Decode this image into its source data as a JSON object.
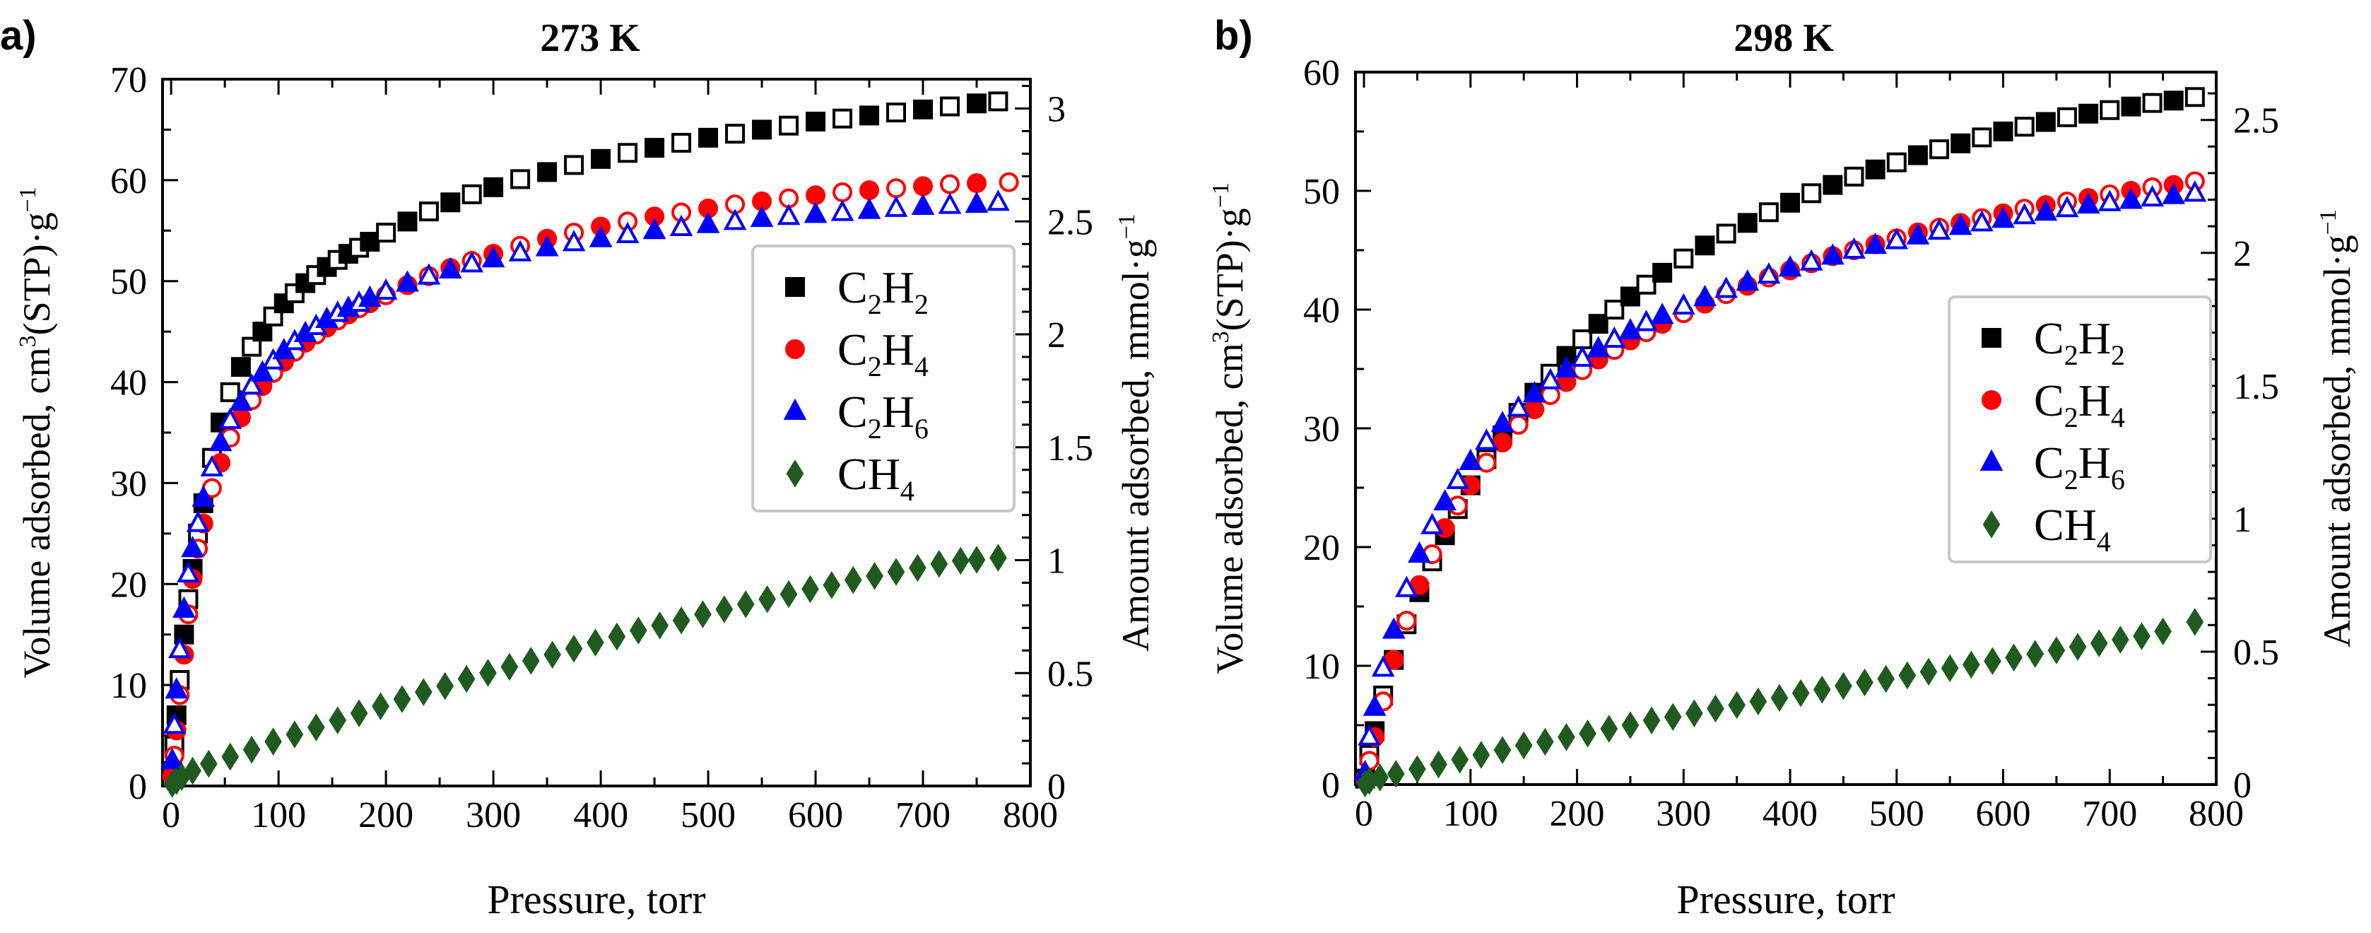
{
  "panels": [
    {
      "label": "a)",
      "title": "273 K",
      "xlabel": "Pressure, torr",
      "ylabel": "Volume adsorbed, cm3(STP)·g−1",
      "ylabel_parts": [
        "Volume adsorbed, cm",
        "3",
        "(STP)·g",
        "−1"
      ],
      "y2label": "Amount adsorbed, mmol·g−1",
      "y2label_parts": [
        "Amount adsorbed, mmol·g",
        "−1"
      ]
    },
    {
      "label": "b)",
      "title": "298 K",
      "xlabel": "Pressure, torr",
      "ylabel": "Volume adsorbed, cm3(STP)·g−1",
      "ylabel_parts": [
        "Volume adsorbed, cm",
        "3",
        "(STP)·g",
        "−1"
      ],
      "y2label": "Amount adsorbed, mmol·g−1",
      "y2label_parts": [
        "Amount adsorbed, mmol·g",
        "−1"
      ]
    }
  ],
  "legend": [
    {
      "key": "C2H2",
      "text": [
        "C",
        "2",
        "H",
        "2"
      ],
      "color": "#000000",
      "marker": "square"
    },
    {
      "key": "C2H4",
      "text": [
        "C",
        "2",
        "H",
        "4"
      ],
      "color": "#ff0000",
      "marker": "circle"
    },
    {
      "key": "C2H6",
      "text": [
        "C",
        "2",
        "H",
        "6"
      ],
      "color": "#0000ff",
      "marker": "triangle"
    },
    {
      "key": "CH4",
      "text": [
        "CH",
        "4"
      ],
      "color": "#1f5a1f",
      "marker": "diamond"
    }
  ],
  "chart_data": [
    {
      "type": "scatter",
      "title": "273 K",
      "xlabel": "Pressure, torr",
      "ylabel": "Volume adsorbed, cm3(STP)·g−1",
      "y2label": "Amount adsorbed, mmol·g−1",
      "xlim": [
        0,
        800
      ],
      "ylim": [
        0,
        70
      ],
      "y2lim": [
        0,
        3.13
      ],
      "xticks": [
        0,
        100,
        200,
        300,
        400,
        500,
        600,
        700,
        800
      ],
      "yticks": [
        0,
        10,
        20,
        30,
        40,
        50,
        60,
        70
      ],
      "y2ticks": [
        0,
        0.5,
        1,
        1.5,
        2,
        2.5,
        3
      ],
      "xtick_labels": [
        "0",
        "100",
        "200",
        "300",
        "400",
        "500",
        "600",
        "700",
        "800"
      ],
      "ytick_labels": [
        "0",
        "10",
        "20",
        "30",
        "40",
        "50",
        "60",
        "70"
      ],
      "y2tick_labels": [
        "0",
        "0.5",
        "1",
        "1.5",
        "2",
        "2.5",
        "3"
      ],
      "grid": false,
      "legend_position": "right-middle",
      "series": [
        {
          "name": "C2H2",
          "marker": "square",
          "color": "#000000",
          "x": [
            1,
            3,
            5,
            8,
            12,
            16,
            20,
            25,
            30,
            38,
            46,
            55,
            65,
            75,
            85,
            95,
            105,
            115,
            125,
            135,
            145,
            155,
            165,
            175,
            185,
            200,
            220,
            240,
            260,
            280,
            300,
            325,
            350,
            375,
            400,
            425,
            450,
            475,
            500,
            525,
            550,
            575,
            600,
            625,
            650,
            675,
            700,
            725,
            750,
            770
          ],
          "y": [
            1.5,
            4,
            7,
            10.5,
            15,
            18.5,
            21.5,
            25,
            28,
            32.5,
            36,
            39,
            41.5,
            43.5,
            45,
            46.5,
            47.8,
            48.8,
            49.8,
            50.6,
            51.4,
            52.1,
            52.7,
            53.3,
            53.9,
            54.8,
            55.9,
            56.9,
            57.8,
            58.6,
            59.3,
            60.1,
            60.8,
            61.5,
            62.1,
            62.7,
            63.2,
            63.7,
            64.2,
            64.6,
            65.0,
            65.4,
            65.8,
            66.1,
            66.4,
            66.7,
            67.0,
            67.3,
            67.6,
            67.8
          ]
        },
        {
          "name": "C2H4",
          "marker": "circle",
          "color": "#ff0000",
          "x": [
            1,
            3,
            5,
            8,
            12,
            16,
            20,
            25,
            30,
            38,
            46,
            55,
            65,
            75,
            85,
            95,
            105,
            115,
            125,
            135,
            145,
            155,
            165,
            175,
            185,
            200,
            220,
            240,
            260,
            280,
            300,
            325,
            350,
            375,
            400,
            425,
            450,
            475,
            500,
            525,
            550,
            575,
            600,
            625,
            650,
            675,
            700,
            725,
            750,
            780
          ],
          "y": [
            1,
            3,
            5.5,
            9,
            13,
            17,
            20.5,
            23.5,
            26,
            29.5,
            32,
            34.5,
            36.5,
            38.2,
            39.6,
            40.9,
            42.0,
            43.0,
            43.9,
            44.7,
            45.4,
            46.1,
            46.7,
            47.3,
            47.8,
            48.6,
            49.6,
            50.5,
            51.3,
            52.0,
            52.7,
            53.5,
            54.2,
            54.8,
            55.4,
            55.9,
            56.4,
            56.8,
            57.2,
            57.6,
            57.9,
            58.2,
            58.5,
            58.8,
            59.0,
            59.2,
            59.4,
            59.6,
            59.7,
            59.8
          ]
        },
        {
          "name": "C2H6",
          "marker": "triangle",
          "color": "#0000ff",
          "x": [
            1,
            3,
            5,
            8,
            12,
            16,
            20,
            25,
            30,
            38,
            46,
            55,
            65,
            75,
            85,
            95,
            105,
            115,
            125,
            135,
            145,
            155,
            165,
            175,
            185,
            200,
            220,
            240,
            260,
            280,
            300,
            325,
            350,
            375,
            400,
            425,
            450,
            475,
            500,
            525,
            550,
            575,
            600,
            625,
            650,
            675,
            700,
            725,
            750,
            770
          ],
          "y": [
            2.5,
            6,
            9.5,
            13.5,
            17.5,
            21,
            23.5,
            26,
            28.5,
            31.5,
            34,
            36.2,
            38,
            39.6,
            40.9,
            42.1,
            43.1,
            44,
            44.8,
            45.5,
            46.2,
            46.8,
            47.3,
            47.8,
            48.3,
            49.0,
            49.8,
            50.5,
            51.1,
            51.7,
            52.2,
            52.8,
            53.3,
            53.8,
            54.2,
            54.6,
            55.0,
            55.3,
            55.6,
            55.9,
            56.2,
            56.4,
            56.6,
            56.8,
            57.0,
            57.2,
            57.4,
            57.5,
            57.6,
            57.8
          ]
        },
        {
          "name": "CH4",
          "marker": "diamond",
          "color": "#1f5a1f",
          "x": [
            1,
            5,
            10,
            20,
            35,
            55,
            75,
            95,
            115,
            135,
            155,
            175,
            195,
            215,
            235,
            255,
            275,
            295,
            315,
            335,
            355,
            375,
            395,
            415,
            435,
            455,
            475,
            495,
            515,
            535,
            555,
            575,
            595,
            615,
            635,
            655,
            675,
            695,
            715,
            735,
            750,
            770
          ],
          "y": [
            0.2,
            0.5,
            0.9,
            1.5,
            2.2,
            2.9,
            3.6,
            4.4,
            5.1,
            5.8,
            6.5,
            7.2,
            7.9,
            8.6,
            9.3,
            9.9,
            10.6,
            11.2,
            11.8,
            12.4,
            13.0,
            13.6,
            14.2,
            14.8,
            15.4,
            15.9,
            16.4,
            17.0,
            17.5,
            18.0,
            18.5,
            19.0,
            19.5,
            19.9,
            20.4,
            20.8,
            21.2,
            21.6,
            22.0,
            22.3,
            22.4,
            22.6
          ]
        }
      ]
    },
    {
      "type": "scatter",
      "title": "298 K",
      "xlabel": "Pressure, torr",
      "ylabel": "Volume adsorbed, cm3(STP)·g−1",
      "y2label": "Amount adsorbed, mmol·g−1",
      "xlim": [
        0,
        800
      ],
      "ylim": [
        0,
        60
      ],
      "y2lim": [
        0,
        2.68
      ],
      "xticks": [
        0,
        100,
        200,
        300,
        400,
        500,
        600,
        700,
        800
      ],
      "yticks": [
        0,
        10,
        20,
        30,
        40,
        50,
        60
      ],
      "y2ticks": [
        0,
        0.5,
        1,
        1.5,
        2,
        2.5
      ],
      "xtick_labels": [
        "0",
        "100",
        "200",
        "300",
        "400",
        "500",
        "600",
        "700",
        "800"
      ],
      "ytick_labels": [
        "0",
        "10",
        "20",
        "30",
        "40",
        "50",
        "60"
      ],
      "y2tick_labels": [
        "0",
        "0.5",
        "1",
        "1.5",
        "2",
        "2.5"
      ],
      "grid": false,
      "legend_position": "right-middle",
      "series": [
        {
          "name": "C2H2",
          "marker": "square",
          "color": "#000000",
          "x": [
            1,
            5,
            10,
            18,
            28,
            40,
            52,
            64,
            76,
            88,
            100,
            115,
            130,
            145,
            160,
            175,
            190,
            205,
            220,
            235,
            250,
            265,
            280,
            300,
            320,
            340,
            360,
            380,
            400,
            420,
            440,
            460,
            480,
            500,
            520,
            540,
            560,
            580,
            600,
            620,
            640,
            660,
            680,
            700,
            720,
            740,
            760,
            780
          ],
          "y": [
            0.5,
            2.5,
            4.5,
            7.5,
            10.5,
            13.5,
            16.2,
            18.8,
            21,
            23.2,
            25.2,
            27.4,
            29.4,
            31.3,
            33,
            34.6,
            36.1,
            37.5,
            38.8,
            40,
            41.1,
            42.1,
            43.1,
            44.3,
            45.4,
            46.4,
            47.3,
            48.2,
            49.0,
            49.8,
            50.5,
            51.2,
            51.8,
            52.4,
            53.0,
            53.5,
            54.0,
            54.5,
            55.0,
            55.4,
            55.8,
            56.2,
            56.5,
            56.8,
            57.1,
            57.4,
            57.6,
            57.9
          ]
        },
        {
          "name": "C2H4",
          "marker": "circle",
          "color": "#ff0000",
          "x": [
            1,
            5,
            10,
            18,
            28,
            40,
            52,
            64,
            76,
            88,
            100,
            115,
            130,
            145,
            160,
            175,
            190,
            205,
            220,
            235,
            250,
            265,
            280,
            300,
            320,
            340,
            360,
            380,
            400,
            420,
            440,
            460,
            480,
            500,
            520,
            540,
            560,
            580,
            600,
            620,
            640,
            660,
            680,
            700,
            720,
            740,
            760,
            780
          ],
          "y": [
            0.5,
            2,
            4,
            7,
            10.5,
            13.8,
            16.8,
            19.4,
            21.6,
            23.5,
            25.2,
            27.1,
            28.8,
            30.3,
            31.6,
            32.8,
            33.9,
            34.9,
            35.8,
            36.6,
            37.4,
            38.1,
            38.8,
            39.7,
            40.5,
            41.3,
            42.0,
            42.7,
            43.3,
            43.9,
            44.5,
            45.0,
            45.5,
            46.0,
            46.5,
            46.9,
            47.3,
            47.7,
            48.1,
            48.5,
            48.8,
            49.1,
            49.4,
            49.7,
            50.0,
            50.3,
            50.5,
            50.8
          ]
        },
        {
          "name": "C2H6",
          "marker": "triangle",
          "color": "#0000ff",
          "x": [
            1,
            5,
            10,
            18,
            28,
            40,
            52,
            64,
            76,
            88,
            100,
            115,
            130,
            145,
            160,
            175,
            190,
            205,
            220,
            235,
            250,
            265,
            280,
            300,
            320,
            340,
            360,
            380,
            400,
            420,
            440,
            460,
            480,
            500,
            520,
            540,
            560,
            580,
            600,
            620,
            640,
            660,
            680,
            700,
            720,
            740,
            760,
            780
          ],
          "y": [
            1,
            4,
            6.5,
            9.8,
            13,
            16.5,
            19.4,
            21.8,
            23.8,
            25.6,
            27.2,
            28.9,
            30.4,
            31.7,
            32.9,
            34,
            35,
            35.9,
            36.7,
            37.5,
            38.2,
            38.9,
            39.5,
            40.3,
            41.0,
            41.7,
            42.3,
            42.9,
            43.5,
            44.0,
            44.5,
            45.0,
            45.4,
            45.8,
            46.2,
            46.6,
            47.0,
            47.3,
            47.6,
            47.9,
            48.2,
            48.5,
            48.8,
            49.0,
            49.2,
            49.4,
            49.6,
            49.8
          ]
        },
        {
          "name": "CH4",
          "marker": "diamond",
          "color": "#1f5a1f",
          "x": [
            1,
            5,
            15,
            30,
            50,
            70,
            90,
            110,
            130,
            150,
            170,
            190,
            210,
            230,
            250,
            270,
            290,
            310,
            330,
            350,
            370,
            390,
            410,
            430,
            450,
            470,
            490,
            510,
            530,
            550,
            570,
            590,
            610,
            630,
            650,
            670,
            690,
            710,
            730,
            750,
            780
          ],
          "y": [
            0.1,
            0.3,
            0.6,
            0.9,
            1.3,
            1.7,
            2.1,
            2.5,
            2.9,
            3.3,
            3.6,
            4.0,
            4.3,
            4.7,
            5.0,
            5.4,
            5.7,
            6.0,
            6.4,
            6.7,
            7.0,
            7.3,
            7.7,
            8.0,
            8.3,
            8.6,
            8.9,
            9.2,
            9.5,
            9.8,
            10.1,
            10.4,
            10.7,
            11.0,
            11.3,
            11.6,
            11.9,
            12.2,
            12.5,
            12.9,
            13.7
          ]
        }
      ]
    }
  ]
}
